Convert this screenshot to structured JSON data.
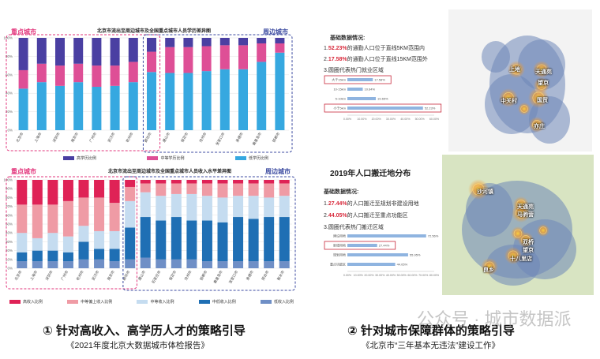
{
  "chart_data": [
    {
      "type": "bar",
      "stacked": true,
      "title": "北京市流出至周边城市及全国重点城市人员学历差异图",
      "group_labels": [
        "重点城市",
        "周边城市"
      ],
      "categories": [
        "北京市",
        "上海市",
        "深圳市",
        "南京市",
        "广州市",
        "武汉市",
        "杭州市",
        "廊坊市",
        "唐山市",
        "保定市",
        "沧州市",
        "张家口市",
        "承德市",
        "秦皇岛市",
        "邯郸市"
      ],
      "yticks": [
        "0%",
        "20%",
        "40%",
        "60%",
        "80%",
        "100%"
      ],
      "ylim": [
        0,
        100
      ],
      "series": [
        {
          "name": "低学历比例",
          "color": "#36a8e0",
          "values": [
            45,
            52,
            48,
            52,
            47,
            48,
            52,
            63,
            62,
            62,
            64,
            66,
            66,
            74,
            84
          ]
        },
        {
          "name": "中等学历比例",
          "color": "#de4f96",
          "values": [
            20,
            20,
            22,
            20,
            23,
            22,
            22,
            22,
            28,
            28,
            27,
            26,
            26,
            20,
            10
          ]
        },
        {
          "name": "高学历比例",
          "color": "#4a3fa2",
          "values": [
            35,
            28,
            30,
            28,
            30,
            30,
            26,
            15,
            10,
            10,
            9,
            8,
            8,
            6,
            6
          ]
        }
      ],
      "legend_order": [
        "高学历比例",
        "中等学历比例",
        "低学历比例"
      ]
    },
    {
      "type": "bar",
      "stacked": true,
      "title": "北京市流出至周边城市及全国重点城市人员收入水平差异图",
      "group_labels": [
        "重点城市",
        "周边城市"
      ],
      "categories": [
        "北京市",
        "上海市",
        "深圳市",
        "广州市",
        "杭州市",
        "武汉市",
        "南京市",
        "廊坊市",
        "唐山市",
        "石家庄市",
        "保定市",
        "沧州市",
        "邯郸市",
        "秦皇岛市",
        "张家口市",
        "承德市",
        "邢台市",
        "衡水市"
      ],
      "yticks": [
        "0%",
        "10%",
        "20%",
        "30%",
        "40%",
        "50%",
        "60%",
        "70%",
        "80%",
        "90%",
        "100%"
      ],
      "ylim": [
        0,
        100
      ],
      "series": [
        {
          "name": "低收入比例",
          "color": "#6f8fc6",
          "values": [
            8,
            8,
            8,
            8,
            10,
            10,
            8,
            10,
            12,
            10,
            10,
            10,
            8,
            8,
            8,
            8,
            8,
            8
          ]
        },
        {
          "name": "中低收入比例",
          "color": "#1f6fb4",
          "values": [
            10,
            12,
            12,
            10,
            20,
            12,
            14,
            36,
            46,
            44,
            48,
            44,
            46,
            44,
            50,
            48,
            50,
            50
          ]
        },
        {
          "name": "中等收入比例",
          "color": "#c5dcf0",
          "values": [
            22,
            14,
            20,
            18,
            18,
            20,
            20,
            30,
            28,
            28,
            26,
            30,
            28,
            28,
            24,
            26,
            22,
            24
          ]
        },
        {
          "name": "中等偏上收入比例",
          "color": "#ef9ba5",
          "values": [
            32,
            38,
            32,
            40,
            32,
            38,
            32,
            16,
            10,
            14,
            12,
            12,
            14,
            16,
            14,
            14,
            16,
            14
          ]
        },
        {
          "name": "高收入比例",
          "color": "#df2256",
          "values": [
            28,
            28,
            28,
            24,
            20,
            20,
            26,
            8,
            4,
            4,
            4,
            4,
            4,
            4,
            4,
            4,
            4,
            4
          ]
        }
      ],
      "legend_order": [
        "高收入比例",
        "中等偏上收入比例",
        "中等收入比例",
        "中低收入比例",
        "低收入比例"
      ]
    },
    {
      "type": "bar",
      "orientation": "horizontal",
      "categories": [
        "大于15km",
        "10-15km",
        "5-10km",
        "小于5km"
      ],
      "values": [
        17.58,
        10.64,
        19.65,
        52.23
      ],
      "value_labels": [
        "17.58%",
        "10.64%",
        "19.65%",
        "52.23%"
      ],
      "highlighted": [
        "大于15km",
        "小于5km"
      ],
      "xticks": [
        "0.00%",
        "10.00%",
        "20.00%",
        "30.00%",
        "40.00%",
        "50.00%",
        "60.00%"
      ],
      "xlim": [
        0,
        60
      ]
    },
    {
      "type": "bar",
      "orientation": "horizontal",
      "categories": [
        "建设用地",
        "新增用地",
        "规划用地",
        "重点功能区"
      ],
      "values": [
        72.56,
        27.44,
        55.95,
        44.05
      ],
      "value_labels": [
        "72.56%",
        "27.44%",
        "55.95%",
        "44.05%"
      ],
      "highlighted": [
        "新增用地"
      ],
      "xticks": [
        "0.00%",
        "10.00%",
        "20.00%",
        "30.00%",
        "40.00%",
        "50.00%",
        "60.00%",
        "70.00%",
        "80.00%"
      ],
      "xlim": [
        0,
        80
      ]
    }
  ],
  "right_top": {
    "title": "基础数据情况:",
    "lines": [
      {
        "num": "1.",
        "pct": "52.23%",
        "text": "的通勤人口位于直线5KM范围内"
      },
      {
        "num": "2.",
        "pct": "17.58%",
        "text": "的通勤人口位于直线15KM范围外"
      },
      {
        "num": "3.",
        "pct": "",
        "text": "圆圈代表热门就业区域"
      }
    ],
    "map_labels": [
      "上地",
      "天通苑",
      "望京",
      "中关村",
      "国贸",
      "亦庄"
    ]
  },
  "right_bottom": {
    "heading": "2019年人口搬迁地分布",
    "title": "基础数据情况:",
    "lines": [
      {
        "num": "1.",
        "pct": "27.44%",
        "text": "的人口搬迁至规划非建设用地"
      },
      {
        "num": "2.",
        "pct": "44.05%",
        "text": "的人口搬迁至重点功能区"
      },
      {
        "num": "3.",
        "pct": "",
        "text": "圆圈代表热门搬迁区域"
      }
    ],
    "map_labels": [
      "沙河镇",
      "天通苑",
      "马驹营",
      "望京",
      "双桥",
      "良乡",
      "十八里店"
    ]
  },
  "captions": {
    "left_main": "① 针对高收入、高学历人才的策略引导",
    "left_sub": "《2021年度北京大数据城市体检报告》",
    "right_main": "② 针对城市保障群体的策略引导",
    "right_sub": "《北京市“三年基本无违法”建设工作》"
  },
  "watermark": "公众号 · 城市数据派",
  "colors": {
    "key_city": "#e2347b",
    "surround_city": "#3b4aa0",
    "highlight_box": "#c8283b"
  }
}
